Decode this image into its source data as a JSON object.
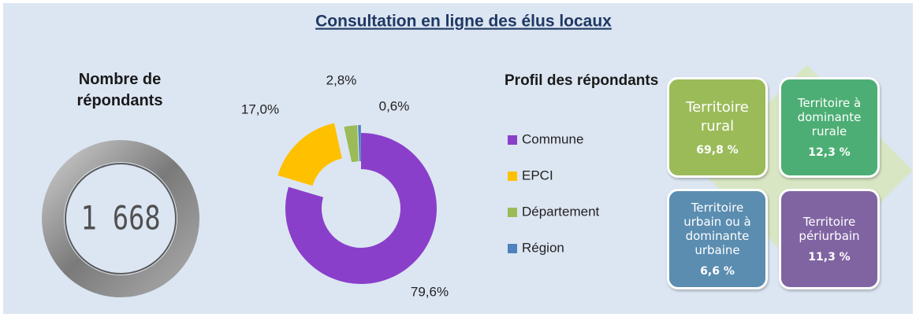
{
  "title": "Consultation en ligne des élus locaux",
  "respondents": {
    "label": "Nombre de répondants",
    "value": "1 668"
  },
  "chart_data": {
    "type": "donut",
    "title": "Profil des répondants",
    "categories": [
      "Commune",
      "EPCI",
      "Département",
      "Région"
    ],
    "values": [
      79.6,
      17.0,
      2.8,
      0.6
    ],
    "value_labels": [
      "79,6%",
      "17,0%",
      "2,8%",
      "0,6%"
    ],
    "colors": [
      "#8a3fca",
      "#ffc000",
      "#9bbb59",
      "#4f81bd"
    ]
  },
  "tiles": [
    {
      "label": "Territoire rural",
      "value": "69,8 %",
      "color": "#9bbb59"
    },
    {
      "label": "Territoire à dominante rurale",
      "value": "12,3 %",
      "color": "#4cae74"
    },
    {
      "label": "Territoire urbain ou à dominante urbaine",
      "value": "6,6 %",
      "color": "#5b8db0"
    },
    {
      "label": "Territoire périurbain",
      "value": "11,3 %",
      "color": "#8064a2"
    }
  ]
}
